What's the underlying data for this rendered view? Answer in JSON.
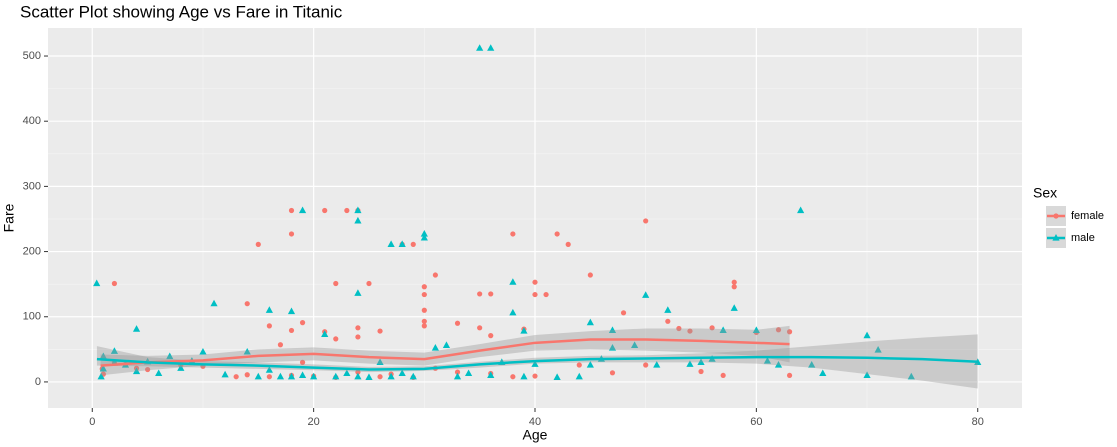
{
  "chart_data": {
    "type": "scatter",
    "title": "Scatter Plot showing Age vs Fare in Titanic",
    "x_label": "Age",
    "y_label": "Fare",
    "xlim": [
      -4,
      84
    ],
    "xticks": [
      0,
      20,
      40,
      60,
      80
    ],
    "ylim": [
      -40,
      543
    ],
    "yticks": [
      0,
      100,
      200,
      300,
      400,
      500
    ],
    "grid": true,
    "legend_title": "Sex",
    "legend_position": "right",
    "series": [
      {
        "name": "female",
        "color": "#F8766D",
        "marker": "circle",
        "x": [
          2,
          14,
          15,
          16,
          17,
          18,
          18,
          18,
          19,
          19,
          21,
          21,
          22,
          22,
          23,
          24,
          24,
          24,
          25,
          26,
          28,
          29,
          30,
          30,
          30,
          30,
          30,
          31,
          33,
          35,
          35,
          36,
          36,
          38,
          39,
          40,
          40,
          41,
          42,
          43,
          45,
          48,
          50,
          52,
          53,
          54,
          56,
          58,
          58,
          60,
          62,
          63,
          63,
          0.9,
          1,
          2,
          3,
          4,
          5,
          8,
          9,
          10,
          13,
          14,
          16,
          18,
          20,
          22,
          24,
          26,
          27,
          29,
          31,
          33,
          36,
          38,
          40,
          44,
          47,
          50,
          55,
          57
        ],
        "values": [
          151,
          120,
          211,
          86,
          57,
          263,
          227,
          79,
          91,
          30,
          263,
          77,
          151,
          66,
          263,
          263,
          83,
          69,
          151,
          78,
          211,
          211,
          146,
          134,
          110,
          93,
          86,
          164,
          90,
          135,
          83,
          135,
          71,
          227,
          81,
          153,
          134,
          134,
          227,
          211,
          164,
          106,
          247,
          93,
          82,
          78,
          83,
          153,
          146,
          76,
          80,
          77,
          10,
          20,
          12,
          30,
          27,
          21,
          19,
          26,
          31,
          24,
          8,
          11,
          8,
          10,
          9,
          7,
          15,
          8,
          12,
          7,
          21,
          15,
          13,
          8,
          9,
          26,
          14,
          26,
          16,
          10
        ],
        "trend": {
          "x": [
            0.75,
            5,
            10,
            15,
            20,
            25,
            30,
            35,
            40,
            45,
            50,
            55,
            60,
            63
          ],
          "values": [
            25,
            30,
            33,
            40,
            43,
            38,
            35,
            48,
            60,
            65,
            65,
            63,
            60,
            58
          ],
          "lower": [
            10,
            18,
            25,
            30,
            33,
            28,
            25,
            38,
            48,
            50,
            48,
            45,
            40,
            30
          ],
          "upper": [
            42,
            40,
            42,
            50,
            53,
            48,
            45,
            58,
            72,
            78,
            82,
            82,
            80,
            86
          ]
        }
      },
      {
        "name": "male",
        "color": "#00BFC4",
        "marker": "triangle",
        "x": [
          0.4,
          1,
          2,
          4,
          11,
          16,
          18,
          19,
          24,
          24,
          24,
          27,
          28,
          30,
          30,
          35,
          36,
          38,
          38,
          39,
          45,
          47,
          50,
          52,
          57,
          58,
          60,
          64,
          65,
          70,
          71,
          74,
          80,
          70,
          66,
          62,
          61,
          56,
          55,
          54,
          51,
          49,
          47,
          46,
          45,
          44,
          42,
          40,
          39,
          37,
          36,
          34,
          33,
          32,
          31,
          29,
          28,
          27,
          26,
          25,
          24,
          23,
          22,
          21,
          20,
          19,
          18,
          17,
          16,
          15,
          14,
          12,
          10,
          9,
          8,
          7,
          6,
          5,
          4,
          3,
          2,
          1,
          0.8
        ],
        "values": [
          151,
          39,
          47,
          81,
          120,
          110,
          108,
          263,
          247,
          263,
          136,
          211,
          211,
          227,
          221,
          512,
          512,
          153,
          106,
          78,
          91,
          79,
          133,
          110,
          79,
          113,
          79,
          263,
          26,
          71,
          49,
          8,
          30,
          10,
          13,
          26,
          32,
          35,
          30,
          27,
          26,
          56,
          52,
          35,
          26,
          8,
          7,
          27,
          8,
          30,
          10,
          13,
          8,
          56,
          52,
          8,
          13,
          8,
          30,
          7,
          8,
          13,
          8,
          73,
          8,
          10,
          8,
          8,
          18,
          8,
          46,
          11,
          46,
          32,
          21,
          39,
          13,
          31,
          16,
          26,
          29,
          20,
          8
        ],
        "trend": {
          "x": [
            0.42,
            5,
            10,
            15,
            20,
            25,
            30,
            35,
            40,
            45,
            50,
            55,
            60,
            65,
            70,
            75,
            80
          ],
          "values": [
            35,
            30,
            27,
            25,
            22,
            19,
            20,
            27,
            32,
            35,
            36,
            37,
            38,
            38,
            37,
            35,
            31
          ],
          "lower": [
            25,
            24,
            22,
            20,
            18,
            15,
            17,
            22,
            28,
            30,
            30,
            30,
            28,
            22,
            12,
            2,
            -10
          ],
          "upper": [
            55,
            38,
            32,
            30,
            27,
            23,
            24,
            31,
            37,
            40,
            41,
            44,
            48,
            55,
            62,
            68,
            73
          ]
        }
      }
    ]
  }
}
